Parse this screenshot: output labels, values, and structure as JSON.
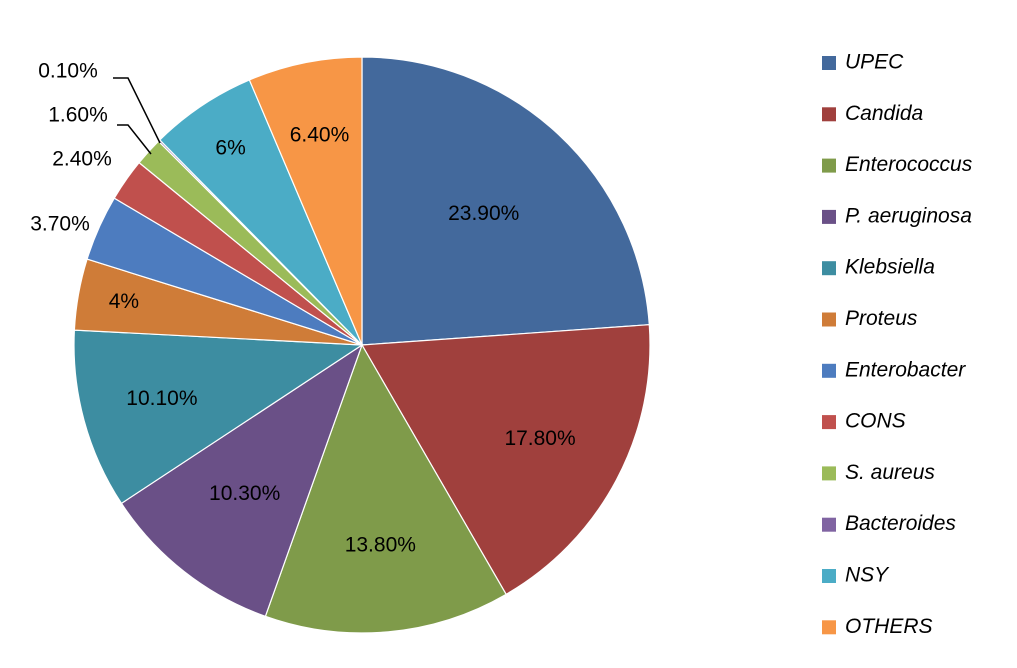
{
  "chart_data": {
    "type": "pie",
    "title": "",
    "legend_position": "right",
    "start_angle_deg": 0,
    "direction": "clockwise",
    "slices": [
      {
        "name": "UPEC",
        "value": 23.9,
        "label": "23.90%",
        "color": "#43699C"
      },
      {
        "name": "Candida",
        "value": 17.8,
        "label": "17.80%",
        "color": "#A0403D"
      },
      {
        "name": "Enterococcus",
        "value": 13.8,
        "label": "13.80%",
        "color": "#7F9B4A"
      },
      {
        "name": "P. aeruginosa",
        "value": 10.3,
        "label": "10.30%",
        "color": "#6A5087"
      },
      {
        "name": "Klebsiella",
        "value": 10.1,
        "label": "10.10%",
        "color": "#3D8DA1"
      },
      {
        "name": "Proteus",
        "value": 4.0,
        "label": "4%",
        "color": "#CF7C38"
      },
      {
        "name": "Enterobacter",
        "value": 3.7,
        "label": "3.70%",
        "color": "#4D7CBF"
      },
      {
        "name": "CONS",
        "value": 2.4,
        "label": "2.40%",
        "color": "#C0504D"
      },
      {
        "name": "S. aureus",
        "value": 1.6,
        "label": "1.60%",
        "color": "#9BBB59"
      },
      {
        "name": "Bacteroides",
        "value": 0.1,
        "label": "0.10%",
        "color": "#8064A2"
      },
      {
        "name": "NSY",
        "value": 6.0,
        "label": "6%",
        "color": "#4BACC6"
      },
      {
        "name": "OTHERS",
        "value": 6.4,
        "label": "6.40%",
        "color": "#F79646"
      }
    ]
  }
}
